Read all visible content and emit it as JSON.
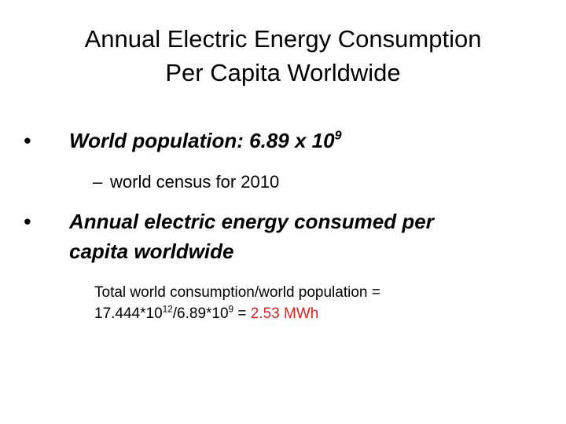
{
  "title": {
    "lines": [
      "Annual Electric Energy Consumption",
      "Per Capita Worldwide"
    ]
  },
  "bullets": [
    {
      "text": "World population: 6.89 x 10",
      "superscript": "9",
      "sub": {
        "text": "world census for 2010"
      }
    },
    {
      "lines": [
        "Annual electric energy consumed per",
        "capita worldwide"
      ],
      "body": {
        "line1": "Total world consumption/world population =",
        "base1": "17.444*10",
        "exp1": "12",
        "base2": "/6.89*10",
        "exp2": "9",
        "equals": "=",
        "result": "2.53 MWh"
      }
    }
  ]
}
